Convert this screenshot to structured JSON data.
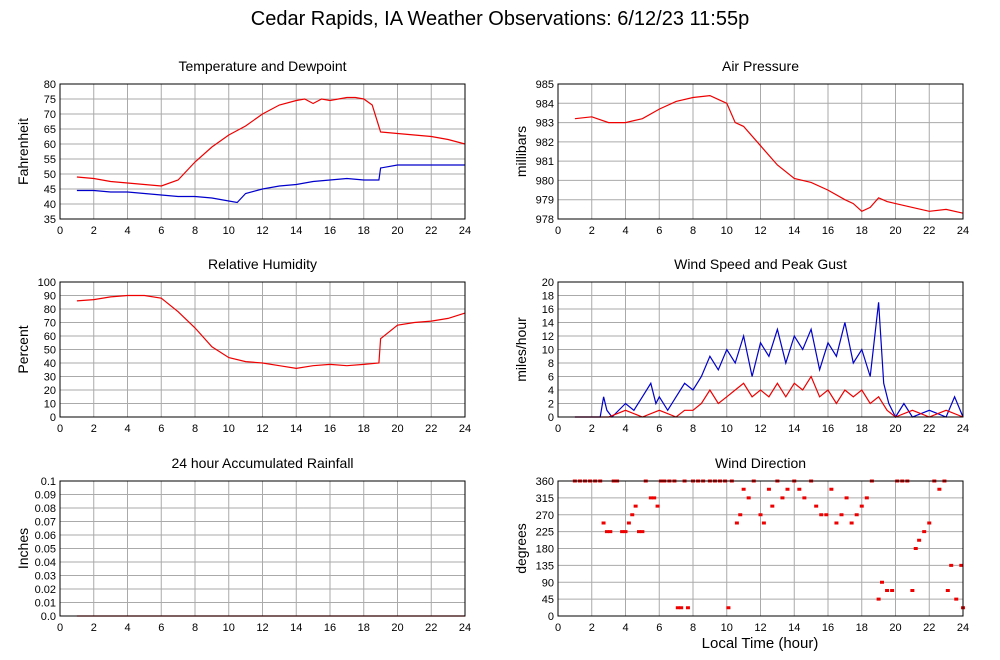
{
  "title": "Cedar Rapids, IA Weather Observations: 6/12/23 11:55p",
  "xlabel": "Local Time (hour)",
  "colors": {
    "grid": "#aaaaaa",
    "red": "#ee0000",
    "blue": "#0000cc"
  },
  "chart_data": [
    {
      "id": "temp",
      "type": "line",
      "title": "Temperature and Dewpoint",
      "ylabel": "Fahrenheit",
      "xlim": [
        0,
        24
      ],
      "ylim": [
        35,
        80
      ],
      "yticks": [
        35,
        40,
        45,
        50,
        55,
        60,
        65,
        70,
        75,
        80
      ],
      "xticks": [
        0,
        2,
        4,
        6,
        8,
        10,
        12,
        14,
        16,
        18,
        20,
        22,
        24
      ],
      "series": [
        {
          "color": "#ee0000",
          "x": [
            1,
            2,
            3,
            4,
            5,
            6,
            7,
            8,
            9,
            10,
            10.5,
            11,
            12,
            13,
            14,
            14.5,
            15,
            15.5,
            16,
            17,
            17.5,
            18,
            18.5,
            19,
            20,
            21,
            22,
            23,
            24
          ],
          "y": [
            49,
            48.5,
            47.5,
            47,
            46.5,
            46,
            48,
            54,
            59,
            63,
            64.5,
            66,
            70,
            73,
            74.5,
            75,
            73.5,
            75,
            74.5,
            75.5,
            75.5,
            75,
            73,
            64,
            63.5,
            63,
            62.5,
            61.5,
            60
          ]
        },
        {
          "color": "#0000cc",
          "x": [
            1,
            2,
            3,
            4,
            5,
            6,
            7,
            8,
            9,
            10,
            10.5,
            11,
            12,
            13,
            14,
            15,
            16,
            17,
            18,
            18.9,
            19,
            20,
            21,
            22,
            23,
            24
          ],
          "y": [
            44.5,
            44.5,
            44,
            44,
            43.5,
            43,
            42.5,
            42.5,
            42,
            41,
            40.5,
            43.5,
            45,
            46,
            46.5,
            47.5,
            48,
            48.5,
            48,
            48,
            52,
            53,
            53,
            53,
            53,
            53
          ]
        }
      ]
    },
    {
      "id": "press",
      "type": "line",
      "title": "Air Pressure",
      "ylabel": "millibars",
      "xlim": [
        0,
        24
      ],
      "ylim": [
        978,
        985
      ],
      "yticks": [
        978,
        979,
        980,
        981,
        982,
        983,
        984,
        985
      ],
      "xticks": [
        0,
        2,
        4,
        6,
        8,
        10,
        12,
        14,
        16,
        18,
        20,
        22,
        24
      ],
      "series": [
        {
          "color": "#ee0000",
          "x": [
            1,
            2,
            3,
            4,
            5,
            6,
            7,
            8,
            9,
            9.5,
            10,
            10.5,
            11,
            12,
            13,
            14,
            15,
            16,
            17,
            17.5,
            18,
            18.5,
            19,
            19.5,
            20,
            21,
            22,
            23,
            24
          ],
          "y": [
            983.2,
            983.3,
            983,
            983,
            983.2,
            983.7,
            984.1,
            984.3,
            984.4,
            984.2,
            984,
            983,
            982.8,
            981.8,
            980.8,
            980.1,
            979.9,
            979.5,
            979,
            978.8,
            978.4,
            978.6,
            979.1,
            978.9,
            978.8,
            978.6,
            978.4,
            978.5,
            978.3
          ]
        }
      ]
    },
    {
      "id": "rh",
      "type": "line",
      "title": "Relative Humidity",
      "ylabel": "Percent",
      "xlim": [
        0,
        24
      ],
      "ylim": [
        0,
        100
      ],
      "yticks": [
        0,
        10,
        20,
        30,
        40,
        50,
        60,
        70,
        80,
        90,
        100
      ],
      "xticks": [
        0,
        2,
        4,
        6,
        8,
        10,
        12,
        14,
        16,
        18,
        20,
        22,
        24
      ],
      "series": [
        {
          "color": "#ee0000",
          "x": [
            1,
            2,
            3,
            4,
            5,
            6,
            7,
            8,
            9,
            10,
            11,
            12,
            13,
            14,
            15,
            16,
            17,
            18,
            18.9,
            19,
            20,
            21,
            22,
            23,
            24
          ],
          "y": [
            86,
            87,
            89,
            90,
            90,
            88,
            78,
            66,
            52,
            44,
            41,
            40,
            38,
            36,
            38,
            39,
            38,
            39,
            40,
            58,
            68,
            70,
            71,
            73,
            77
          ]
        }
      ]
    },
    {
      "id": "wind",
      "type": "line",
      "title": "Wind Speed and Peak Gust",
      "ylabel": "miles/hour",
      "xlim": [
        0,
        24
      ],
      "ylim": [
        0,
        20
      ],
      "yticks": [
        0,
        2,
        4,
        6,
        8,
        10,
        12,
        14,
        16,
        18,
        20
      ],
      "xticks": [
        0,
        2,
        4,
        6,
        8,
        10,
        12,
        14,
        16,
        18,
        20,
        22,
        24
      ],
      "series": [
        {
          "color": "#0000cc",
          "x": [
            1,
            2.5,
            2.7,
            2.9,
            3.2,
            4,
            4.5,
            5,
            5.5,
            5.8,
            6,
            6.5,
            7,
            7.5,
            8,
            8.5,
            9,
            9.5,
            10,
            10.5,
            11,
            11.5,
            12,
            12.5,
            13,
            13.5,
            14,
            14.5,
            15,
            15.5,
            16,
            16.5,
            17,
            17.5,
            18,
            18.5,
            19,
            19.3,
            19.6,
            20,
            20.5,
            21,
            22,
            23,
            23.5,
            24
          ],
          "y": [
            0,
            0,
            3,
            1,
            0,
            2,
            1,
            3,
            5,
            2,
            3,
            1,
            3,
            5,
            4,
            6,
            9,
            7,
            10,
            8,
            12,
            6,
            11,
            9,
            13,
            8,
            12,
            10,
            13,
            7,
            11,
            9,
            14,
            8,
            10,
            6,
            17,
            5,
            2,
            0,
            2,
            0,
            1,
            0,
            3,
            0
          ]
        },
        {
          "color": "#ee0000",
          "x": [
            1,
            2.5,
            3,
            4,
            5,
            6,
            7,
            7.5,
            8,
            8.5,
            9,
            9.5,
            10,
            10.5,
            11,
            11.5,
            12,
            12.5,
            13,
            13.5,
            14,
            14.5,
            15,
            15.5,
            16,
            16.5,
            17,
            17.5,
            18,
            18.5,
            19,
            19.5,
            20,
            21,
            22,
            23,
            24
          ],
          "y": [
            0,
            0,
            0,
            1,
            0,
            1,
            0,
            1,
            1,
            2,
            4,
            2,
            3,
            4,
            5,
            3,
            4,
            3,
            5,
            3,
            5,
            4,
            6,
            3,
            4,
            2,
            4,
            3,
            4,
            2,
            3,
            1,
            0,
            1,
            0,
            1,
            0
          ]
        }
      ]
    },
    {
      "id": "rain",
      "type": "line",
      "title": "24 hour Accumulated Rainfall",
      "ylabel": "Inches",
      "xlim": [
        0,
        24
      ],
      "ylim": [
        0,
        0.1
      ],
      "yticks": [
        0.0,
        0.01,
        0.02,
        0.03,
        0.04,
        0.05,
        0.06,
        0.07,
        0.08,
        0.09,
        0.1
      ],
      "ytick_labels": [
        "0.0",
        "0.01",
        "0.02",
        "0.03",
        "0.04",
        "0.05",
        "0.06",
        "0.07",
        "0.08",
        "0.09",
        "0.1"
      ],
      "xticks": [
        0,
        2,
        4,
        6,
        8,
        10,
        12,
        14,
        16,
        18,
        20,
        22,
        24
      ],
      "series": [
        {
          "color": "#ee0000",
          "x": [
            1,
            24
          ],
          "y": [
            0,
            0
          ]
        }
      ]
    },
    {
      "id": "dir",
      "type": "scatter",
      "title": "Wind Direction",
      "ylabel": "degrees",
      "xlim": [
        0,
        24
      ],
      "ylim": [
        0,
        360
      ],
      "yticks": [
        0,
        45,
        90,
        135,
        180,
        225,
        270,
        315,
        360
      ],
      "xticks": [
        0,
        2,
        4,
        6,
        8,
        10,
        12,
        14,
        16,
        18,
        20,
        22,
        24
      ],
      "series": [
        {
          "color": "#ee0000",
          "x": [
            1,
            1.3,
            1.6,
            1.9,
            2.2,
            2.5,
            2.7,
            2.9,
            3.1,
            3.3,
            3.5,
            3.8,
            4,
            4.2,
            4.4,
            4.6,
            4.8,
            5,
            5.2,
            5.5,
            5.7,
            5.9,
            6.1,
            6.3,
            6.6,
            6.9,
            7.1,
            7.3,
            7.5,
            7.7,
            8,
            8.3,
            8.6,
            9,
            9.3,
            9.6,
            9.9,
            10.1,
            10.3,
            10.6,
            10.8,
            11,
            11.3,
            11.6,
            12,
            12.2,
            12.5,
            12.7,
            13,
            13.3,
            13.6,
            14,
            14.3,
            14.6,
            15,
            15.3,
            15.6,
            15.9,
            16.2,
            16.5,
            16.8,
            17.1,
            17.4,
            17.7,
            18,
            18.3,
            18.6,
            19,
            19.2,
            19.5,
            19.8,
            20.1,
            20.4,
            20.7,
            21,
            21.2,
            21.4,
            21.7,
            22,
            22.3,
            22.6,
            22.9,
            23.1,
            23.3,
            23.6,
            23.9,
            24
          ],
          "y": [
            360,
            360,
            360,
            360,
            360,
            360,
            248,
            225,
            225,
            360,
            360,
            225,
            225,
            248,
            270,
            293,
            225,
            225,
            360,
            315,
            315,
            293,
            360,
            360,
            360,
            360,
            22,
            22,
            360,
            22,
            360,
            360,
            360,
            360,
            360,
            360,
            360,
            22,
            360,
            248,
            270,
            338,
            315,
            360,
            270,
            248,
            338,
            293,
            360,
            315,
            338,
            360,
            338,
            315,
            360,
            293,
            270,
            270,
            338,
            248,
            270,
            315,
            248,
            270,
            293,
            315,
            360,
            45,
            90,
            68,
            68,
            360,
            360,
            360,
            68,
            180,
            202,
            225,
            248,
            360,
            338,
            360,
            68,
            135,
            45,
            135,
            22
          ]
        }
      ]
    }
  ]
}
